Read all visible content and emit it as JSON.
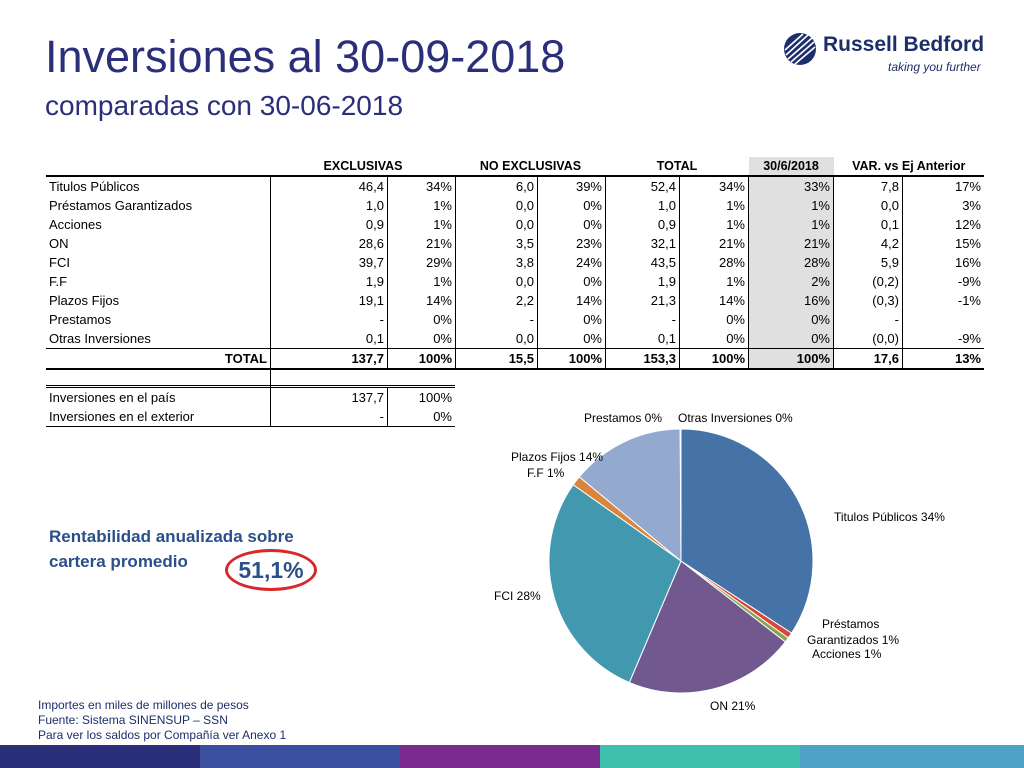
{
  "header": {
    "title": "Inversiones al 30-09-2018",
    "subtitle": "comparadas con 30-06-2018"
  },
  "logo": {
    "brand": "Russell Bedford",
    "tagline": "taking you further"
  },
  "table": {
    "headers": [
      "EXCLUSIVAS",
      "NO EXCLUSIVAS",
      "TOTAL",
      "30/6/2018",
      "VAR. vs Ej Anterior"
    ],
    "rows": [
      [
        "Titulos Públicos",
        "46,4",
        "34%",
        "6,0",
        "39%",
        "52,4",
        "34%",
        "33%",
        "7,8",
        "17%"
      ],
      [
        "Préstamos Garantizados",
        "1,0",
        "1%",
        "0,0",
        "0%",
        "1,0",
        "1%",
        "1%",
        "0,0",
        "3%"
      ],
      [
        "Acciones",
        "0,9",
        "1%",
        "0,0",
        "0%",
        "0,9",
        "1%",
        "1%",
        "0,1",
        "12%"
      ],
      [
        "ON",
        "28,6",
        "21%",
        "3,5",
        "23%",
        "32,1",
        "21%",
        "21%",
        "4,2",
        "15%"
      ],
      [
        "FCI",
        "39,7",
        "29%",
        "3,8",
        "24%",
        "43,5",
        "28%",
        "28%",
        "5,9",
        "16%"
      ],
      [
        "F.F",
        "1,9",
        "1%",
        "0,0",
        "0%",
        "1,9",
        "1%",
        "2%",
        "(0,2)",
        "-9%"
      ],
      [
        "Plazos Fijos",
        "19,1",
        "14%",
        "2,2",
        "14%",
        "21,3",
        "14%",
        "16%",
        "(0,3)",
        "-1%"
      ],
      [
        "Prestamos",
        "-",
        "0%",
        "-",
        "0%",
        "-",
        "0%",
        "0%",
        "-",
        ""
      ],
      [
        "Otras Inversiones",
        "0,1",
        "0%",
        "0,0",
        "0%",
        "0,1",
        "0%",
        "0%",
        "(0,0)",
        "-9%"
      ]
    ],
    "total": [
      "TOTAL",
      "137,7",
      "100%",
      "15,5",
      "100%",
      "153,3",
      "100%",
      "100%",
      "17,6",
      "13%"
    ]
  },
  "location_table": {
    "rows": [
      [
        "Inversiones en el país",
        "137,7",
        "100%"
      ],
      [
        "Inversiones en el exterior",
        "-",
        "0%"
      ]
    ]
  },
  "rentabilidad": {
    "label_line1": "Rentabilidad anualizada sobre",
    "label_line2": "cartera promedio",
    "value": "51,1%"
  },
  "chart_data": {
    "type": "pie",
    "slices": [
      {
        "label": "Titulos Públicos 34%",
        "value": 34.2,
        "color": "#4572a7"
      },
      {
        "label": "Préstamos Garantizados 1%",
        "value": 0.7,
        "color": "#d9443f"
      },
      {
        "label": "Acciones 1%",
        "value": 0.6,
        "color": "#89a54e"
      },
      {
        "label": "ON 21%",
        "value": 20.9,
        "color": "#71588f"
      },
      {
        "label": "FCI 28%",
        "value": 28.4,
        "color": "#4198af"
      },
      {
        "label": "F.F 1%",
        "value": 1.2,
        "color": "#db843d"
      },
      {
        "label": "Plazos Fijos 14%",
        "value": 13.9,
        "color": "#93a9cf"
      },
      {
        "label": "Prestamos 0%",
        "value": 0,
        "color": "#b9cde5"
      },
      {
        "label": "Otras Inversiones 0%",
        "value": 0.1,
        "color": "#c0504d"
      }
    ]
  },
  "pie_labels": {
    "titulos": "Titulos Públicos 34%",
    "prestamos_gar_1": "Préstamos",
    "prestamos_gar_2": "Garantizados 1%",
    "acciones": "Acciones 1%",
    "on": "ON 21%",
    "fci": "FCI 28%",
    "ff": "F.F 1%",
    "plazos": "Plazos Fijos 14%",
    "prestamos": "Prestamos 0%",
    "otras": "Otras Inversiones 0%"
  },
  "footnotes": [
    "Importes en miles de millones de pesos",
    "Fuente: Sistema SINENSUP – SSN",
    "Para ver los saldos por Compañía ver Anexo 1"
  ],
  "colors": {
    "title": "#2b2f7a",
    "accent_red": "#d9282c",
    "bar": [
      "#2b2f7a",
      "#3b4fa0",
      "#7a2b8f",
      "#3fbfae",
      "#4da3c7"
    ]
  }
}
